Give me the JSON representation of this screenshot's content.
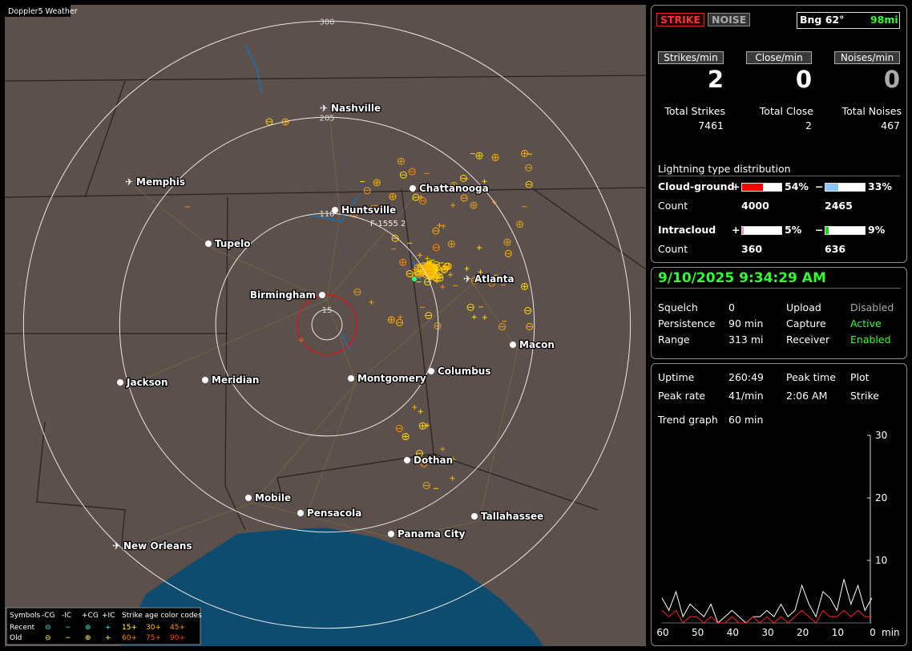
{
  "map": {
    "title": "Doppler5 Weather",
    "rings": [
      300,
      205,
      110,
      15
    ],
    "callout": "F-1555 2",
    "cities": [
      "Nashville",
      "Memphis",
      "Chattanooga",
      "Huntsville",
      "Tupelo",
      "Birmingham",
      "Atlanta",
      "Macon",
      "Jackson",
      "Meridian",
      "Montgomery",
      "Columbus",
      "Dothan",
      "Mobile",
      "Pensacola",
      "Tallahassee",
      "Panama City",
      "New Orleans"
    ],
    "legend": {
      "symbols": "Symbols",
      "columns": [
        "-CG",
        "-IC",
        "+CG",
        "+IC"
      ],
      "age_title": "Strike age color codes",
      "rows": [
        {
          "label": "Recent",
          "marks": [
            "⊖",
            "−",
            "⊕",
            "+"
          ],
          "ages": [
            "15+",
            "30+",
            "45+"
          ]
        },
        {
          "label": "Old",
          "marks": [
            "⊖",
            "−",
            "⊕",
            "+"
          ],
          "ages": [
            "60+",
            "75+",
            "90+"
          ]
        }
      ]
    }
  },
  "status": {
    "strike": "STRIKE",
    "noise": "NOISE",
    "bearing": "Bng 62°",
    "distance": "98mi",
    "rates": [
      {
        "label": "Strikes/min",
        "value": 2
      },
      {
        "label": "Close/min",
        "value": 0
      },
      {
        "label": "Noises/min",
        "value": 0
      }
    ],
    "totals": [
      {
        "label": "Total Strikes",
        "value": 7461
      },
      {
        "label": "Total Close",
        "value": 2
      },
      {
        "label": "Total Noises",
        "value": 467
      }
    ],
    "distribution": {
      "title": "Lightning type distribution",
      "rows": [
        {
          "label": "Cloud-ground",
          "pos_sign": "+",
          "pos": {
            "value": 54,
            "label": "54%"
          },
          "pos_color": "#ff0000",
          "neg_sign": "−",
          "neg": {
            "value": 33,
            "label": "33%"
          },
          "neg_color": "#8cc8ff",
          "count_label": "Count",
          "pos_count": 4000,
          "neg_count": 2465
        },
        {
          "label": "Intracloud",
          "pos_sign": "+",
          "pos": {
            "value": 5,
            "label": "5%"
          },
          "pos_color": "#ff80c0",
          "neg_sign": "−",
          "neg": {
            "value": 9,
            "label": "9%"
          },
          "neg_color": "#20d020",
          "count_label": "Count",
          "pos_count": 360,
          "neg_count": 636
        }
      ]
    }
  },
  "clock": {
    "datetime": "9/10/2025 9:34:29 AM",
    "settings": [
      {
        "label": "Squelch",
        "value": 0
      },
      {
        "label": "Persistence",
        "value": "90 min"
      },
      {
        "label": "Range",
        "value": "313 mi"
      },
      {
        "label": "Upload",
        "value": "Disabled"
      },
      {
        "label": "Capture",
        "value": "Active"
      },
      {
        "label": "Receiver",
        "value": "Enabled"
      }
    ]
  },
  "stats": {
    "uptime_label": "Uptime",
    "uptime": "260:49",
    "peak_time_label": "Peak time",
    "peak_time": "2:06 AM",
    "plot_label": "Plot",
    "plot": "Strike",
    "peak_rate_label": "Peak rate",
    "peak_rate": "41/min",
    "trend_label": "Trend graph",
    "trend_window": "60 min"
  },
  "trend": {
    "xlim": [
      60,
      0
    ],
    "ylim": [
      0,
      30
    ],
    "xticks": [
      60,
      50,
      40,
      30,
      20,
      10,
      0
    ],
    "yticks": [
      10,
      20,
      30
    ],
    "x_unit": "min",
    "x": [
      60,
      58,
      56,
      54,
      52,
      50,
      48,
      46,
      44,
      42,
      40,
      38,
      36,
      34,
      32,
      30,
      28,
      26,
      24,
      22,
      20,
      18,
      16,
      14,
      12,
      10,
      8,
      6,
      4,
      2,
      0
    ],
    "series": [
      {
        "color": "#ffffff",
        "values": [
          4,
          2,
          5,
          1,
          3,
          2,
          1,
          3,
          0,
          1,
          2,
          1,
          0,
          1,
          1,
          2,
          1,
          3,
          1,
          2,
          6,
          3,
          1,
          5,
          4,
          2,
          7,
          3,
          6,
          2,
          4
        ]
      },
      {
        "color": "#ff2020",
        "values": [
          2,
          1,
          2,
          0,
          1,
          1,
          0,
          1,
          0,
          0,
          1,
          0,
          0,
          1,
          0,
          1,
          0,
          1,
          0,
          1,
          2,
          1,
          0,
          2,
          1,
          1,
          2,
          1,
          2,
          1,
          1
        ]
      }
    ]
  }
}
